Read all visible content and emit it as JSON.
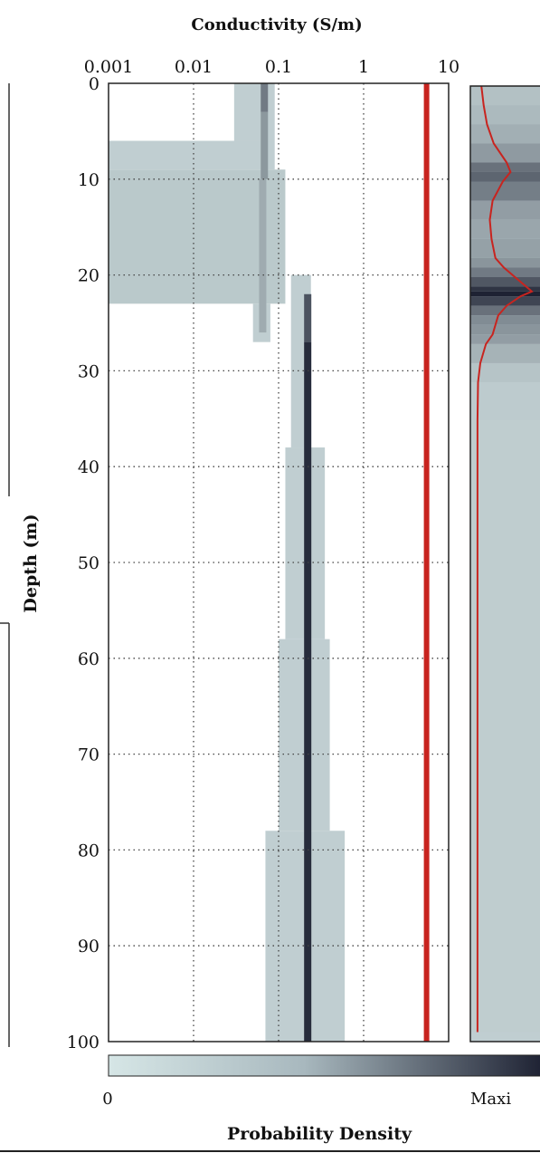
{
  "chart_data": {
    "type": "heatmap",
    "title": "",
    "xlabel": "Conductivity (S/m)",
    "ylabel": "Depth (m)",
    "x_scale": "log",
    "xlim": [
      0.001,
      10
    ],
    "ylim": [
      100,
      0
    ],
    "x_tick_labels": [
      "0.001",
      "0.01",
      "0.1",
      "1",
      "10"
    ],
    "x_ticks": [
      0.001,
      0.01,
      0.1,
      1,
      10
    ],
    "y_ticks": [
      0,
      10,
      20,
      30,
      40,
      50,
      60,
      70,
      80,
      90,
      100
    ],
    "y_tick_labels": [
      "0",
      "10",
      "20",
      "30",
      "40",
      "50",
      "60",
      "70",
      "80",
      "90",
      "100"
    ],
    "grid": true,
    "colorbar": {
      "label": "Probability Density",
      "min_label": "0",
      "max_label": "Maxi",
      "color_low": "#d6e6e6",
      "color_high": "#1e2233"
    },
    "pdf_bands": [
      {
        "depth": [
          0,
          6
        ],
        "range": [
          0.03,
          0.09
        ],
        "density": 0.12
      },
      {
        "depth": [
          6,
          9
        ],
        "range": [
          0.001,
          0.09
        ],
        "density": 0.12
      },
      {
        "depth": [
          9,
          23
        ],
        "range": [
          0.001,
          0.12
        ],
        "density": 0.15
      },
      {
        "depth": [
          23,
          27
        ],
        "range": [
          0.05,
          0.08
        ],
        "density": 0.12
      },
      {
        "depth": [
          20,
          38
        ],
        "range": [
          0.14,
          0.24
        ],
        "density": 0.12
      },
      {
        "depth": [
          38,
          58
        ],
        "range": [
          0.12,
          0.35
        ],
        "density": 0.12
      },
      {
        "depth": [
          58,
          78
        ],
        "range": [
          0.1,
          0.4
        ],
        "density": 0.12
      },
      {
        "depth": [
          78,
          100
        ],
        "range": [
          0.07,
          0.6
        ],
        "density": 0.12
      }
    ],
    "peak_model": [
      {
        "depth": [
          0,
          3
        ],
        "conductivity": 0.068,
        "density": 0.55
      },
      {
        "depth": [
          3,
          10
        ],
        "conductivity": 0.068,
        "density": 0.4
      },
      {
        "depth": [
          10,
          26
        ],
        "conductivity": 0.065,
        "density": 0.3
      },
      {
        "depth": [
          22,
          27
        ],
        "conductivity": 0.22,
        "density": 0.75
      },
      {
        "depth": [
          27,
          100
        ],
        "conductivity": 0.22,
        "density": 0.95
      }
    ],
    "true_value": {
      "conductivity": 5.5,
      "color": "#c8241f"
    },
    "side_panel": {
      "description_color": "#c8241f",
      "profile": [
        [
          0,
          0.1
        ],
        [
          2,
          0.14
        ],
        [
          4,
          0.2
        ],
        [
          6,
          0.32
        ],
        [
          8,
          0.55
        ],
        [
          9,
          0.62
        ],
        [
          10,
          0.48
        ],
        [
          12,
          0.3
        ],
        [
          14,
          0.25
        ],
        [
          16,
          0.28
        ],
        [
          18,
          0.35
        ],
        [
          19,
          0.5
        ],
        [
          20,
          0.7
        ],
        [
          21,
          0.9
        ],
        [
          21.5,
          1.0
        ],
        [
          22,
          0.8
        ],
        [
          23,
          0.55
        ],
        [
          24,
          0.4
        ],
        [
          25,
          0.35
        ],
        [
          26,
          0.3
        ],
        [
          27,
          0.18
        ],
        [
          29,
          0.08
        ],
        [
          31,
          0.04
        ],
        [
          35,
          0.03
        ],
        [
          40,
          0.03
        ],
        [
          50,
          0.03
        ],
        [
          60,
          0.03
        ],
        [
          70,
          0.03
        ],
        [
          80,
          0.03
        ],
        [
          90,
          0.03
        ],
        [
          99,
          0.03
        ]
      ]
    }
  }
}
